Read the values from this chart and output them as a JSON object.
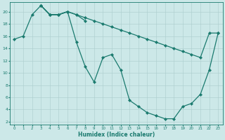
{
  "xlabel": "Humidex (Indice chaleur)",
  "bg_color": "#cce8e8",
  "line_color": "#1a7a6e",
  "grid_color": "#aacccc",
  "xlim": [
    -0.5,
    23.5
  ],
  "ylim": [
    1.5,
    21.5
  ],
  "xticks": [
    0,
    1,
    2,
    3,
    4,
    5,
    6,
    7,
    8,
    9,
    10,
    11,
    12,
    13,
    14,
    15,
    16,
    17,
    18,
    19,
    20,
    21,
    22,
    23
  ],
  "yticks": [
    2,
    4,
    6,
    8,
    10,
    12,
    14,
    16,
    18,
    20
  ],
  "line1_x": [
    0,
    1,
    2,
    3,
    4,
    5,
    6,
    7,
    8
  ],
  "line1_y": [
    15.5,
    16.0,
    19.5,
    21.0,
    19.5,
    19.5,
    20.0,
    19.5,
    18.5
  ],
  "line2_x": [
    3,
    4,
    5,
    6,
    7,
    8,
    9,
    10,
    11,
    12,
    13,
    14,
    15,
    16,
    17,
    18,
    19,
    20,
    21,
    22,
    23
  ],
  "line2_y": [
    21.0,
    19.5,
    19.5,
    20.0,
    15.0,
    11.0,
    8.5,
    12.5,
    13.0,
    10.5,
    5.5,
    4.5,
    3.5,
    3.0,
    2.5,
    2.5,
    4.5,
    5.0,
    6.5,
    10.5,
    16.5
  ],
  "line3_x": [
    3,
    4,
    5,
    6,
    7,
    8,
    9,
    10,
    11,
    12,
    13,
    14,
    15,
    16,
    17,
    18,
    19,
    20,
    21,
    22,
    23
  ],
  "line3_y": [
    21.0,
    19.5,
    19.5,
    20.0,
    19.5,
    19.0,
    18.5,
    18.0,
    17.5,
    17.0,
    16.5,
    16.0,
    15.5,
    15.0,
    14.5,
    14.0,
    13.5,
    13.0,
    12.5,
    16.5,
    16.5
  ]
}
